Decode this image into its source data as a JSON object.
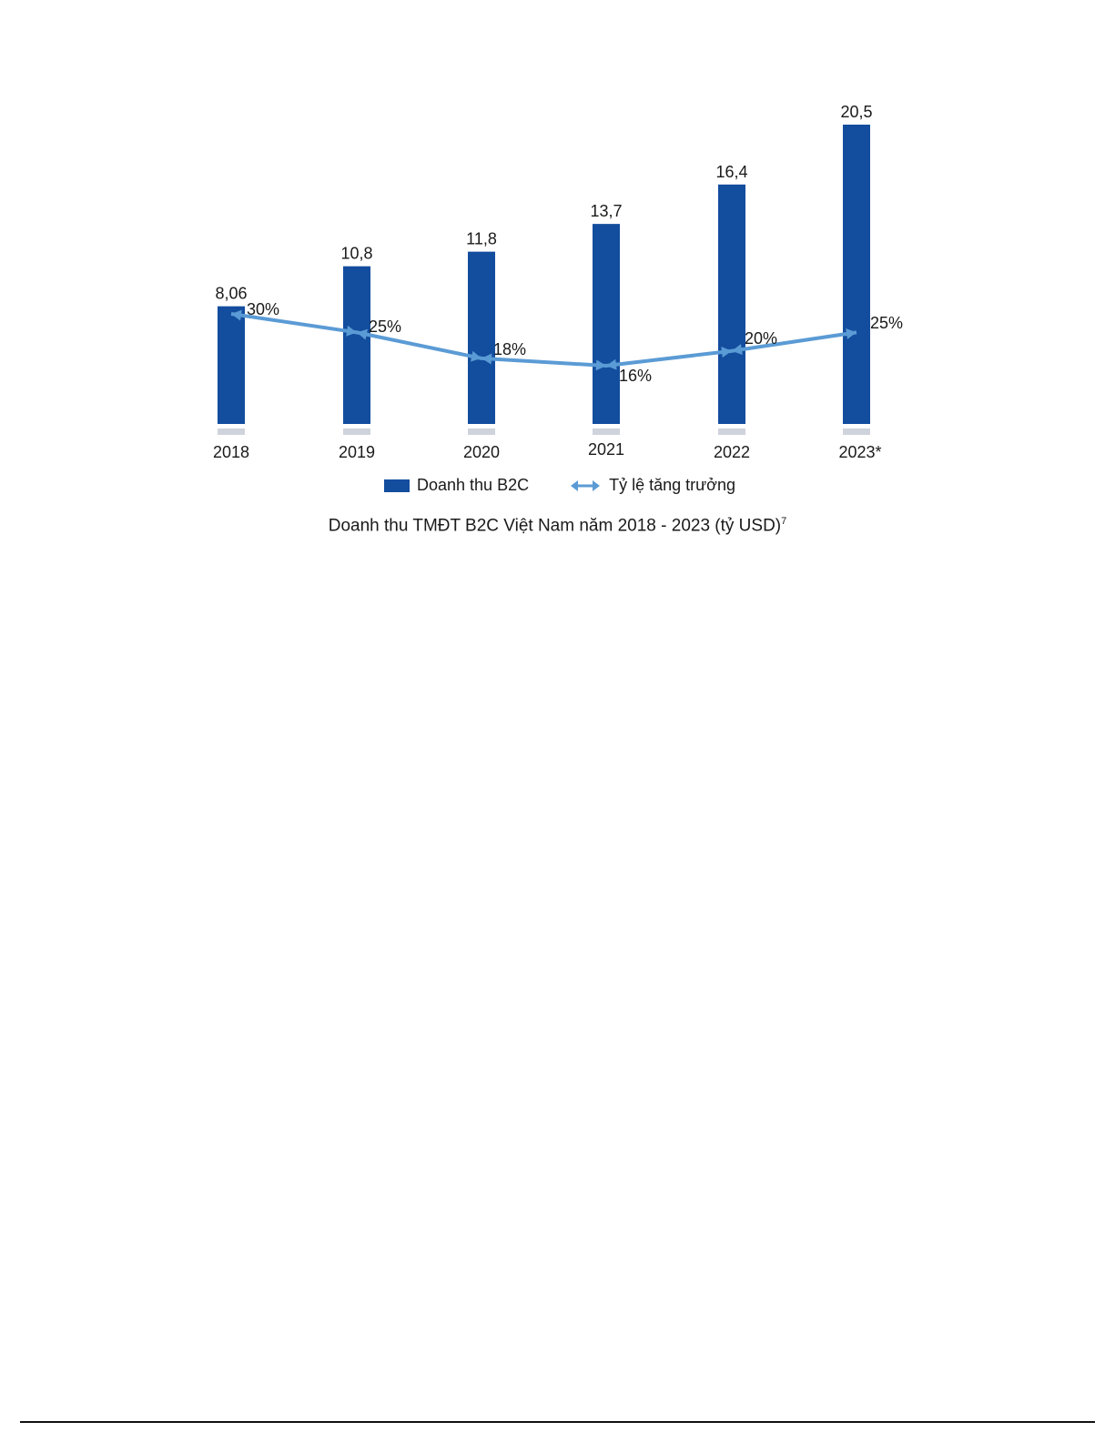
{
  "chart_data": {
    "type": "bar",
    "categories": [
      "2018",
      "2019",
      "2020",
      "2021",
      "2022",
      "2023*"
    ],
    "series": [
      {
        "name": "Doanh thu B2C",
        "type": "bar",
        "values": [
          8.06,
          10.8,
          11.8,
          13.7,
          16.4,
          20.5
        ],
        "value_labels": [
          "8,06",
          "10,8",
          "11,8",
          "13,7",
          "16,4",
          "20,5"
        ]
      },
      {
        "name": "Tỷ lệ tăng trưởng",
        "type": "line",
        "values": [
          30,
          25,
          18,
          16,
          20,
          25
        ],
        "value_labels": [
          "30%",
          "25%",
          "18%",
          "16%",
          "20%",
          "25%"
        ],
        "unit": "%"
      }
    ],
    "title": "Doanh thu TMĐT B2C Việt Nam năm 2018 - 2023 (tỷ USD)",
    "title_footnote": "7",
    "legend_position": "bottom",
    "grid": false,
    "colors": {
      "bar": "#134d9e",
      "line": "#5b9bd5",
      "baseline": "#cfd3dc"
    }
  }
}
